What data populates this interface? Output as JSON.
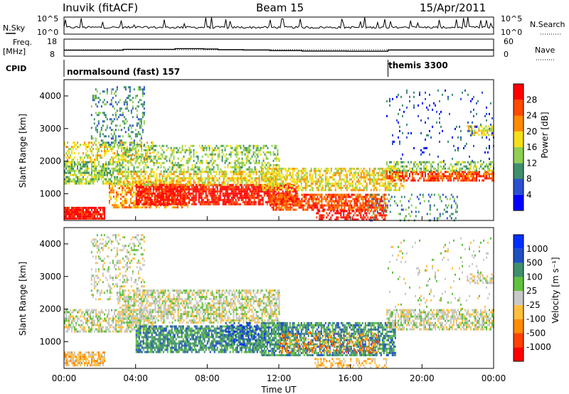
{
  "header": {
    "station": "Inuvik (fitACF)",
    "beam": "Beam 15",
    "date": "15/Apr/2011"
  },
  "nsky": {
    "label": "N.Sky",
    "ticks": [
      "10^5",
      "10^0"
    ],
    "right_ticks": [
      "10^5",
      "10^0"
    ],
    "right_label": "N.Search"
  },
  "freq": {
    "label_line1": "Freq.",
    "label_line2": "[MHz]",
    "ticks": [
      "18",
      "8"
    ],
    "right_ticks": [
      "60",
      "0"
    ],
    "right_label": "Nave",
    "freq_steps": [
      {
        "t": 0.0,
        "mhz": 11.5
      },
      {
        "t": 3.3,
        "mhz": 12.0
      },
      {
        "t": 6.2,
        "mhz": 12.4
      },
      {
        "t": 7.8,
        "mhz": 12.2
      },
      {
        "t": 8.6,
        "mhz": 11.8
      },
      {
        "t": 10.0,
        "mhz": 11.6
      },
      {
        "t": 11.5,
        "mhz": 11.3
      },
      {
        "t": 13.3,
        "mhz": 11.0
      },
      {
        "t": 15.8,
        "mhz": 10.9
      },
      {
        "t": 18.1,
        "mhz": 11.6
      },
      {
        "t": 24.0,
        "mhz": 11.6
      }
    ]
  },
  "cpid": {
    "label": "CPID",
    "modes": [
      {
        "name": "normalsound (fast) 157",
        "start": 0.0
      },
      {
        "name": "themis 3300",
        "start": 18.1
      }
    ]
  },
  "time_axis": {
    "label": "Time UT",
    "ticks": [
      "00:00",
      "04:00",
      "08:00",
      "12:00",
      "16:00",
      "20:00",
      "00:00"
    ]
  },
  "chart_data": [
    {
      "type": "heatmap",
      "parameter": "power",
      "ylabel": "Slant Range [km]",
      "yticks": [
        1000,
        2000,
        3000,
        4000
      ],
      "ylim": [
        180,
        4500
      ],
      "xlim": [
        0,
        24
      ],
      "colorbar_label": "Power [dB]",
      "colorbar_ticks": [
        "28",
        "24",
        "20",
        "16",
        "12",
        "8",
        "4"
      ],
      "colorbar_colors": [
        "#0000ff",
        "#2a50d0",
        "#3f8f6d",
        "#8fcf52",
        "#f5df1a",
        "#ff8c00",
        "#ff4a00",
        "#ff0000"
      ],
      "scatter_bands": [
        {
          "t0": 0.0,
          "t1": 2.3,
          "r0": 250,
          "r1": 600,
          "level": 7,
          "density": 0.9
        },
        {
          "t0": 0.0,
          "t1": 3.0,
          "r0": 1300,
          "r1": 2000,
          "level": 3,
          "density": 0.7
        },
        {
          "t0": 0.0,
          "t1": 5.0,
          "r0": 2000,
          "r1": 2600,
          "level": 4,
          "density": 0.4
        },
        {
          "t0": 1.5,
          "t1": 4.5,
          "r0": 2500,
          "r1": 4300,
          "level": 2,
          "density": 0.25
        },
        {
          "t0": 2.5,
          "t1": 7.0,
          "r0": 600,
          "r1": 1400,
          "level": 5,
          "density": 0.55
        },
        {
          "t0": 4.0,
          "t1": 13.0,
          "r0": 700,
          "r1": 1300,
          "level": 7,
          "density": 0.8
        },
        {
          "t0": 3.0,
          "t1": 12.0,
          "r0": 1300,
          "r1": 1700,
          "level": 4,
          "density": 0.6
        },
        {
          "t0": 3.0,
          "t1": 12.0,
          "r0": 1700,
          "r1": 2500,
          "level": 3,
          "density": 0.4
        },
        {
          "t0": 11.5,
          "t1": 18.0,
          "r0": 500,
          "r1": 1000,
          "level": 6,
          "density": 0.75
        },
        {
          "t0": 11.0,
          "t1": 19.0,
          "r0": 1100,
          "r1": 1800,
          "level": 4,
          "density": 0.6
        },
        {
          "t0": 14.0,
          "t1": 18.0,
          "r0": 200,
          "r1": 500,
          "level": 7,
          "density": 0.5
        },
        {
          "t0": 18.0,
          "t1": 24.0,
          "r0": 1400,
          "r1": 1700,
          "level": 6,
          "density": 0.7
        },
        {
          "t0": 18.0,
          "t1": 24.0,
          "r0": 1700,
          "r1": 2000,
          "level": 3,
          "density": 0.5
        },
        {
          "t0": 17.0,
          "t1": 22.0,
          "r0": 200,
          "r1": 1000,
          "level": 2,
          "density": 0.15
        },
        {
          "t0": 22.5,
          "t1": 24.0,
          "r0": 2800,
          "r1": 3100,
          "level": 4,
          "density": 0.6
        },
        {
          "t0": 18.0,
          "t1": 24.0,
          "r0": 2000,
          "r1": 4200,
          "level": 1,
          "density": 0.06
        }
      ]
    },
    {
      "type": "heatmap",
      "parameter": "velocity",
      "ylabel": "Slant Range [km]",
      "yticks": [
        1000,
        2000,
        3000,
        4000
      ],
      "ylim": [
        180,
        4500
      ],
      "xlim": [
        0,
        24
      ],
      "colorbar_label": "Velocity [m s⁻¹]",
      "colorbar_ticks": [
        "1000",
        "500",
        "100",
        "25",
        "-25",
        "-100",
        "-500",
        "-1000"
      ],
      "colorbar_colors": [
        "#ff0000",
        "#ff4000",
        "#ff8c00",
        "#ffc040",
        "#c8c8c8",
        "#60c040",
        "#3f8f6d",
        "#2050c0",
        "#0030ff"
      ],
      "scatter_bands": [
        {
          "t0": 0.0,
          "t1": 2.3,
          "r0": 250,
          "r1": 700,
          "level": 3,
          "density": 0.7
        },
        {
          "t0": 0.0,
          "t1": 5.0,
          "r0": 1300,
          "r1": 2000,
          "level": 4,
          "density": 0.6
        },
        {
          "t0": 1.5,
          "t1": 4.5,
          "r0": 2300,
          "r1": 4300,
          "level": 4,
          "density": 0.25
        },
        {
          "t0": 3.0,
          "t1": 12.0,
          "r0": 1600,
          "r1": 2600,
          "level": 4,
          "density": 0.6
        },
        {
          "t0": 4.0,
          "t1": 11.0,
          "r0": 700,
          "r1": 1500,
          "level": 6,
          "density": 0.75
        },
        {
          "t0": 9.0,
          "t1": 12.5,
          "r0": 900,
          "r1": 1600,
          "level": 7,
          "density": 0.35
        },
        {
          "t0": 11.0,
          "t1": 18.5,
          "r0": 600,
          "r1": 1600,
          "level": 6,
          "density": 0.7
        },
        {
          "t0": 12.0,
          "t1": 17.5,
          "r0": 700,
          "r1": 1300,
          "level": 2,
          "density": 0.3
        },
        {
          "t0": 14.0,
          "t1": 18.0,
          "r0": 200,
          "r1": 500,
          "level": 3,
          "density": 0.4
        },
        {
          "t0": 18.0,
          "t1": 24.0,
          "r0": 1400,
          "r1": 2000,
          "level": 4,
          "density": 0.65
        },
        {
          "t0": 22.5,
          "t1": 24.0,
          "r0": 2800,
          "r1": 3100,
          "level": 4,
          "density": 0.5
        },
        {
          "t0": 18.0,
          "t1": 24.0,
          "r0": 2000,
          "r1": 4200,
          "level": 4,
          "density": 0.05
        }
      ]
    }
  ]
}
